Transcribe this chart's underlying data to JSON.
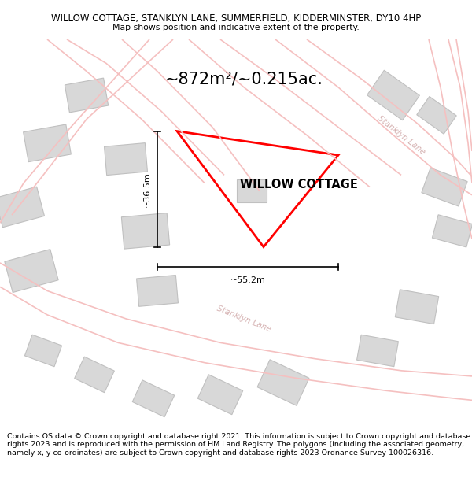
{
  "title_line1": "WILLOW COTTAGE, STANKLYN LANE, SUMMERFIELD, KIDDERMINSTER, DY10 4HP",
  "title_line2": "Map shows position and indicative extent of the property.",
  "area_text": "~872m²/~0.215ac.",
  "property_name": "WILLOW COTTAGE",
  "dim_height": "~36.5m",
  "dim_width": "~55.2m",
  "footer_text": "Contains OS data © Crown copyright and database right 2021. This information is subject to Crown copyright and database rights 2023 and is reproduced with the permission of HM Land Registry. The polygons (including the associated geometry, namely x, y co-ordinates) are subject to Crown copyright and database rights 2023 Ordnance Survey 100026316.",
  "bg_color": "#ffffff",
  "map_bg": "#ffffff",
  "road_color": "#f5c0c0",
  "road_lw": 1.0,
  "building_color": "#d8d8d8",
  "building_stroke": "#c0c0c0",
  "property_color": "#ff0000",
  "dim_color": "#000000",
  "title_fontsize": 8.5,
  "subtitle_fontsize": 7.8,
  "area_fontsize": 15,
  "label_fontsize": 10.5,
  "footer_fontsize": 6.8,
  "road_label_color": "#d0a8a8",
  "road_label_fontsize": 7.5
}
